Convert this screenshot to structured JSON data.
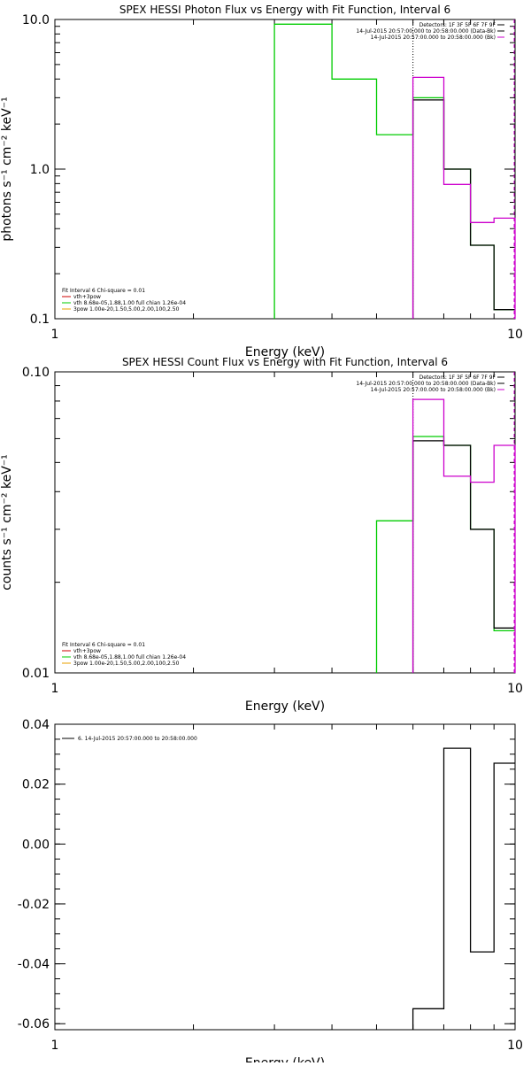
{
  "chart_data": [
    {
      "type": "line",
      "step": true,
      "title": "SPEX HESSI Photon Flux vs Energy with Fit Function, Interval 6",
      "xlabel": "Energy (keV)",
      "ylabel": "photons s⁻¹ cm⁻² keV⁻¹",
      "xscale": "log",
      "yscale": "log",
      "xlim": [
        1,
        10
      ],
      "ylim": [
        0.1,
        10.0
      ],
      "xticks": [
        {
          "v": 1,
          "label": "1"
        },
        {
          "v": 10,
          "label": "10"
        }
      ],
      "yticks": [
        {
          "v": 0.1,
          "label": "0.1"
        },
        {
          "v": 1.0,
          "label": "1.0"
        },
        {
          "v": 10.0,
          "label": "10.0"
        }
      ],
      "legend_top": [
        {
          "text": "Detectors: 1F 3F 5F 6F 7F 9F",
          "color": "#000000"
        },
        {
          "text": "14-Jul-2015 20:57:00.000 to 20:58:00.000 (Data-Bk)",
          "color": "#000000"
        },
        {
          "text": "14-Jul-2015 20:57:00.000 to 20:58:00.000 (Bk)",
          "color": "#cc00cc"
        }
      ],
      "legend_bottom": [
        {
          "text": "Fit Interval 6   Chi-square = 0.01",
          "color": null
        },
        {
          "text": "vth+3pow",
          "color": "#cc0000"
        },
        {
          "text": "vth 8.68e-05,1.88,1.00  full chian 1.26e-04",
          "color": "#00cc00"
        },
        {
          "text": "3pow 1.00e-20,1.50,5.00,2.00,100,2.50",
          "color": "#e8a000"
        }
      ],
      "vline_x": 6,
      "series": [
        {
          "style": "green",
          "edges": [
            3,
            4,
            5,
            6,
            7,
            8,
            9,
            10
          ],
          "values": [
            9.3,
            4.0,
            1.7,
            3.0,
            1.0,
            0.31,
            0.115
          ]
        },
        {
          "style": "black",
          "edges": [
            6,
            7,
            8,
            9,
            10
          ],
          "values": [
            2.9,
            1.0,
            0.31,
            0.115
          ]
        },
        {
          "style": "magenta",
          "edges": [
            6,
            7,
            8,
            9,
            10
          ],
          "values": [
            4.1,
            0.79,
            0.44,
            0.47
          ]
        }
      ]
    },
    {
      "type": "line",
      "step": true,
      "title": "SPEX HESSI Count Flux vs Energy with Fit Function, Interval 6",
      "xlabel": "Energy (keV)",
      "ylabel": "counts s⁻¹ cm⁻² keV⁻¹",
      "xscale": "log",
      "yscale": "log",
      "xlim": [
        1,
        10
      ],
      "ylim": [
        0.01,
        0.1
      ],
      "xticks": [
        {
          "v": 1,
          "label": "1"
        },
        {
          "v": 10,
          "label": "10"
        }
      ],
      "yticks": [
        {
          "v": 0.01,
          "label": "0.01"
        },
        {
          "v": 0.1,
          "label": "0.10"
        }
      ],
      "legend_top": [
        {
          "text": "Detectors: 1F 3F 5F 6F 7F 9F",
          "color": "#000000"
        },
        {
          "text": "14-Jul-2015 20:57:00.000 to 20:58:00.000 (Data-Bk)",
          "color": "#000000"
        },
        {
          "text": "14-Jul-2015 20:57:00.000 to 20:58:00.000 (Bk)",
          "color": "#cc00cc"
        }
      ],
      "legend_bottom": [
        {
          "text": "Fit Interval 6   Chi-square = 0.01",
          "color": null
        },
        {
          "text": "vth+3pow",
          "color": "#cc0000"
        },
        {
          "text": "vth 8.68e-05,1.88,1.00  full chian 1.26e-04",
          "color": "#00cc00"
        },
        {
          "text": "3pow 1.00e-20,1.50,5.00,2.00,100,2.50",
          "color": "#e8a000"
        }
      ],
      "vline_x": 6,
      "series": [
        {
          "style": "green",
          "edges": [
            5,
            6,
            7,
            8,
            9,
            10
          ],
          "values": [
            0.032,
            0.061,
            0.057,
            0.03,
            0.0138
          ]
        },
        {
          "style": "black",
          "edges": [
            6,
            7,
            8,
            9,
            10
          ],
          "values": [
            0.059,
            0.057,
            0.03,
            0.0141
          ]
        },
        {
          "style": "magenta",
          "edges": [
            6,
            7,
            8,
            9,
            10
          ],
          "values": [
            0.081,
            0.045,
            0.043,
            0.057
          ]
        }
      ]
    },
    {
      "type": "line",
      "step": true,
      "title": "",
      "xlabel": "Energy (keV)",
      "ylabel": "",
      "xscale": "log",
      "yscale": "linear",
      "xlim": [
        1,
        10
      ],
      "ylim": [
        -0.062,
        0.04
      ],
      "xticks": [
        {
          "v": 1,
          "label": "1"
        },
        {
          "v": 10,
          "label": "10"
        }
      ],
      "yticks": [
        {
          "v": 0.04,
          "label": "0.04"
        },
        {
          "v": 0.02,
          "label": "0.02"
        },
        {
          "v": 0.0,
          "label": "0.00"
        },
        {
          "v": -0.02,
          "label": "-0.02"
        },
        {
          "v": -0.04,
          "label": "-0.04"
        },
        {
          "v": -0.06,
          "label": "-0.06"
        }
      ],
      "legend_top": [
        {
          "text": "6. 14-Jul-2015 20:57:00.000 to 20:58:00.000",
          "color": "#000000"
        }
      ],
      "legend_bottom": [],
      "vline_x": null,
      "series": [
        {
          "style": "black",
          "edges": [
            6,
            7,
            8,
            9,
            10
          ],
          "values": [
            -0.055,
            0.032,
            -0.036,
            0.027
          ]
        }
      ]
    }
  ]
}
